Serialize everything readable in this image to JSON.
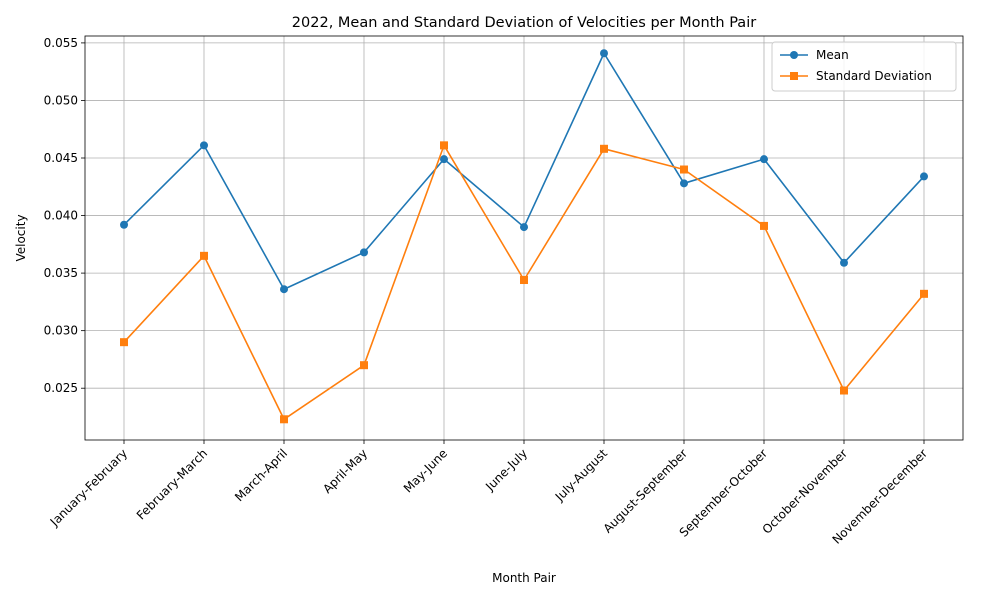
{
  "chart_data": {
    "type": "line",
    "title": "2022, Mean and Standard Deviation of Velocities per Month Pair",
    "xlabel": "Month Pair",
    "ylabel": "Velocity",
    "categories": [
      "January-February",
      "February-March",
      "March-April",
      "April-May",
      "May-June",
      "June-July",
      "July-August",
      "August-September",
      "September-October",
      "October-November",
      "November-December"
    ],
    "series": [
      {
        "name": "Mean",
        "color": "#1f77b4",
        "marker": "circle",
        "values": [
          0.0392,
          0.0461,
          0.0336,
          0.0368,
          0.0449,
          0.039,
          0.0541,
          0.0428,
          0.0449,
          0.0359,
          0.0434
        ]
      },
      {
        "name": "Standard Deviation",
        "color": "#ff7f0e",
        "marker": "square",
        "values": [
          0.029,
          0.0365,
          0.0223,
          0.027,
          0.0461,
          0.0344,
          0.0458,
          0.044,
          0.0391,
          0.0248,
          0.0332
        ]
      }
    ],
    "ylim": [
      0.0205,
      0.0556
    ],
    "yticks": [
      "0.025",
      "0.030",
      "0.035",
      "0.040",
      "0.045",
      "0.050",
      "0.055"
    ],
    "grid": true,
    "legend_position": "top-right"
  }
}
